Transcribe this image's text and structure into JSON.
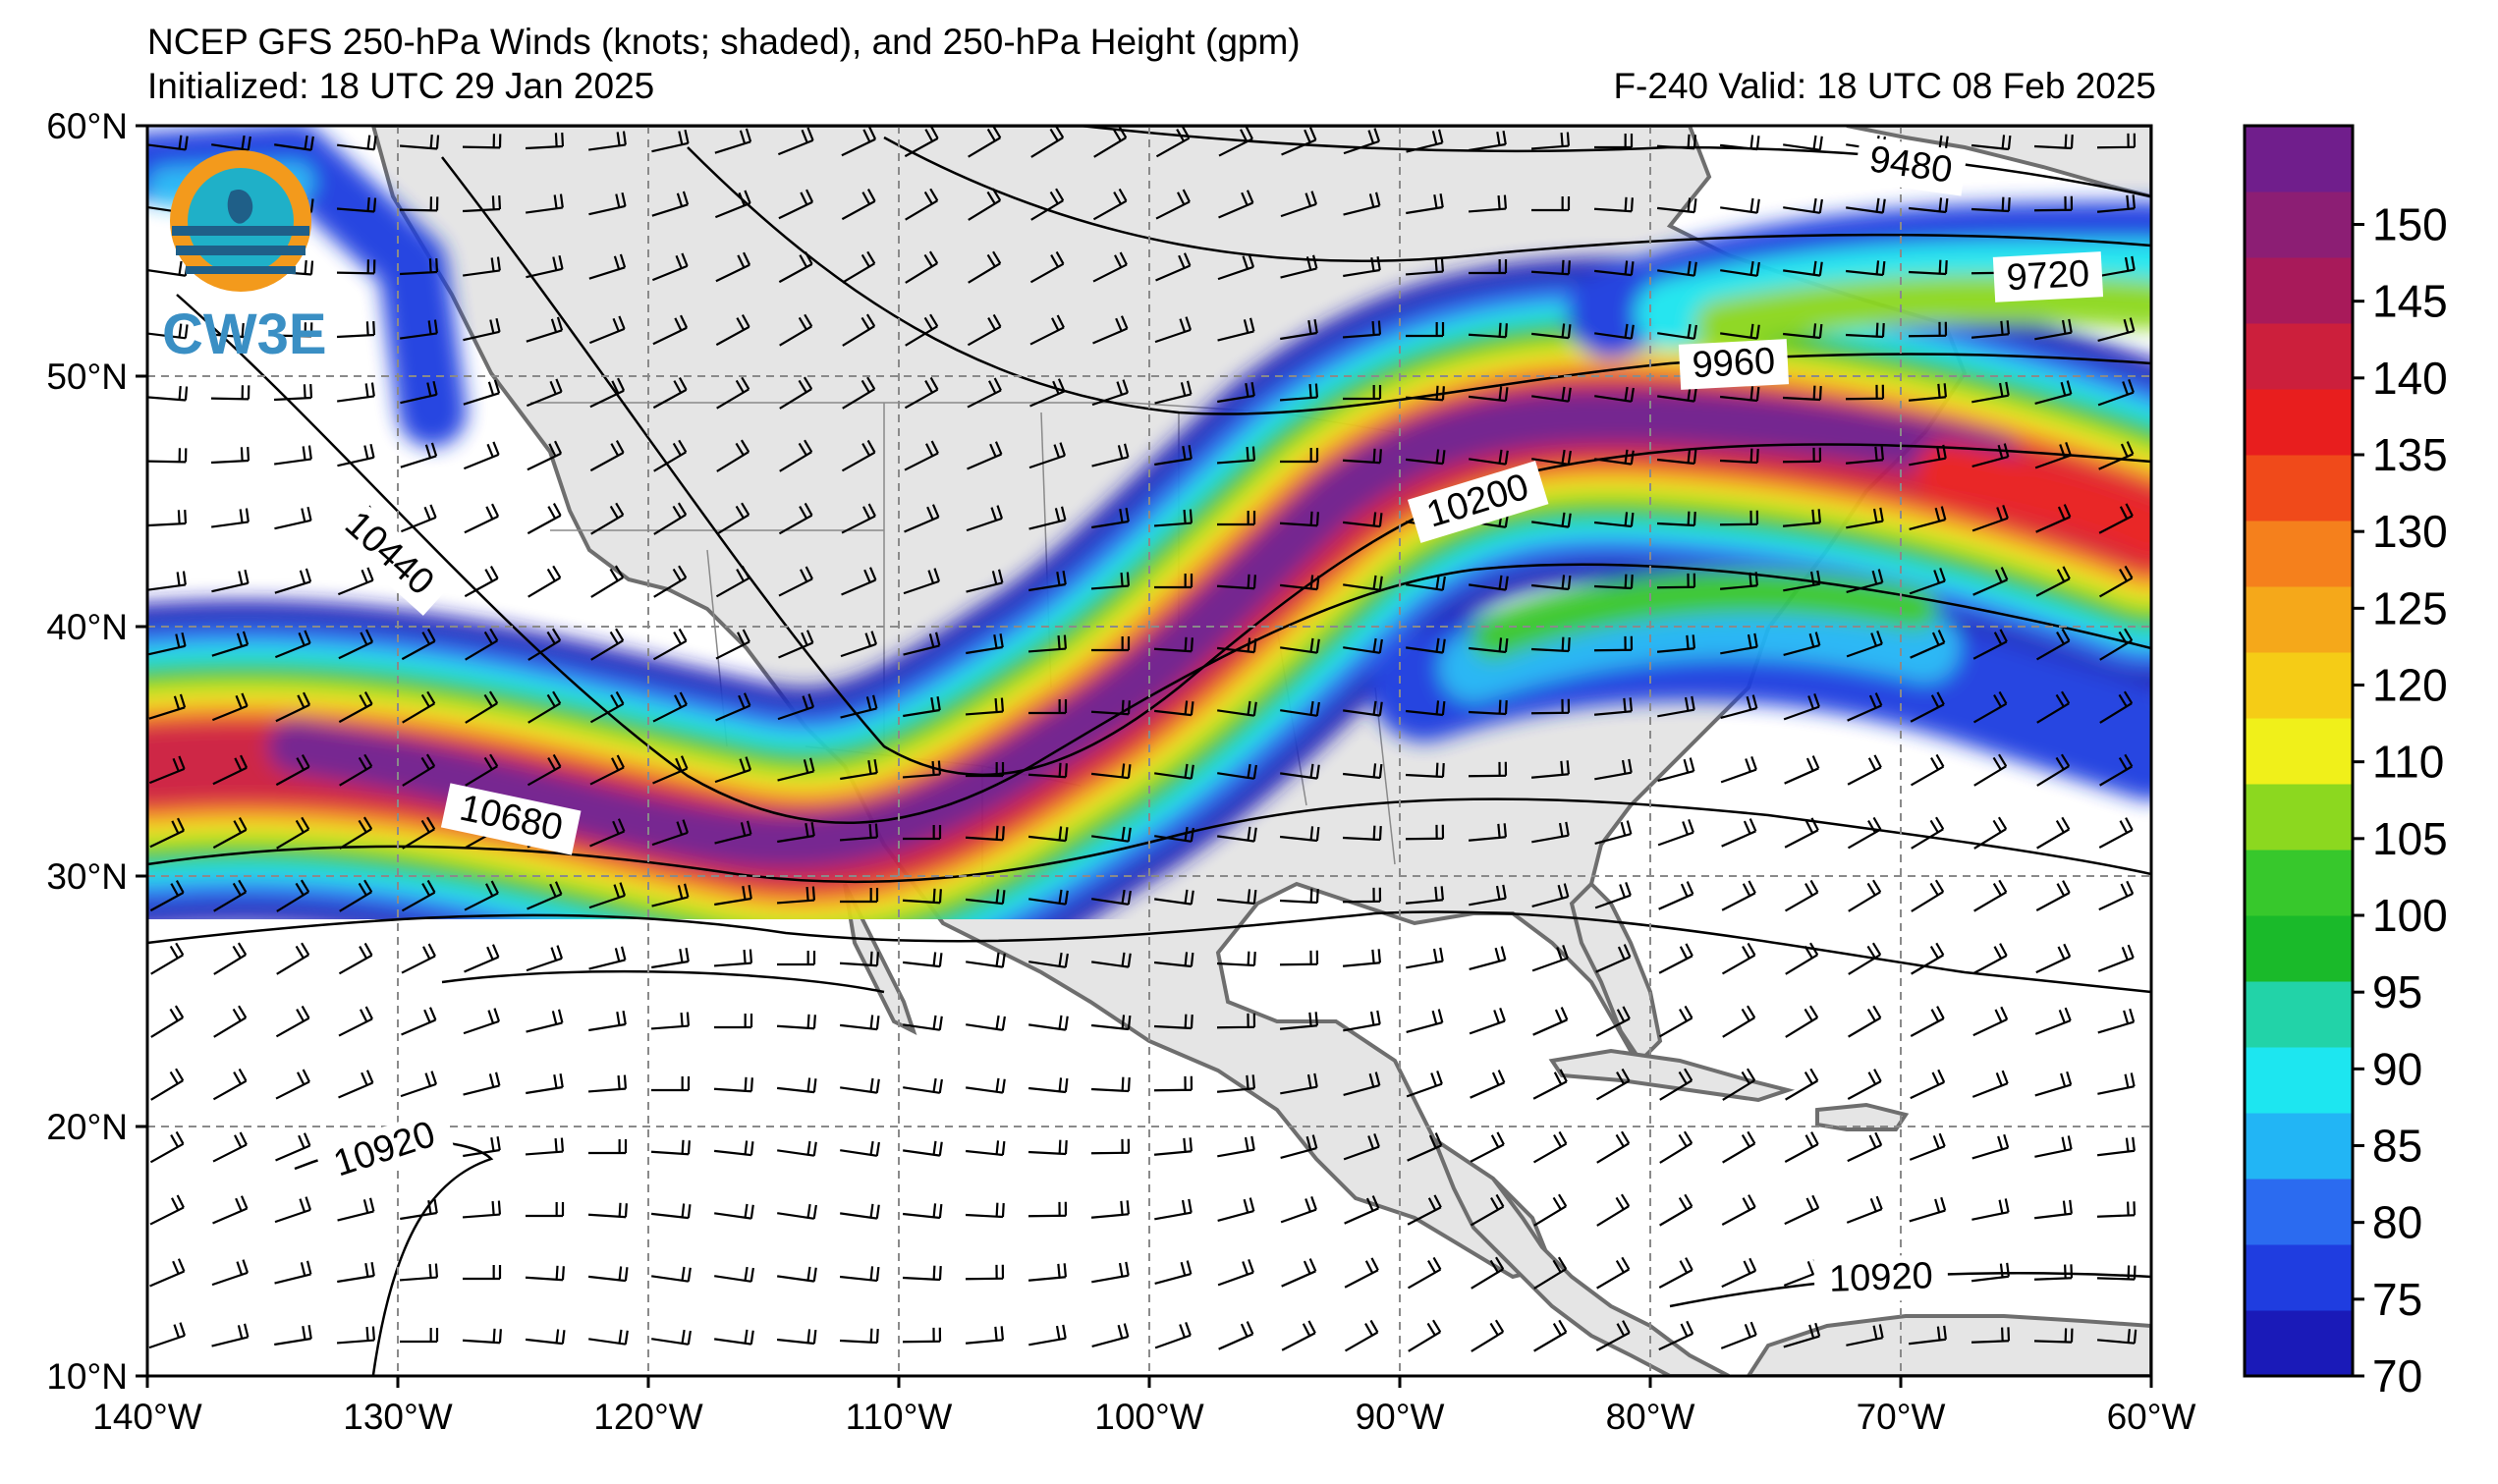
{
  "title": {
    "line1": "NCEP GFS 250-hPa Winds (knots; shaded), and 250-hPa Height (gpm)",
    "line2": "Initialized: 18 UTC 29 Jan 2025",
    "valid": "F-240  Valid: 18 UTC 08 Feb 2025"
  },
  "logo": {
    "text": "CW3E",
    "icon": "cw3e-logo-icon"
  },
  "axes": {
    "lon_labels": [
      "140°W",
      "130°W",
      "120°W",
      "110°W",
      "100°W",
      "90°W",
      "80°W",
      "70°W",
      "60°W"
    ],
    "lat_labels": [
      "60°N",
      "50°N",
      "40°N",
      "30°N",
      "20°N",
      "10°N"
    ],
    "lon_range": [
      -140,
      -60
    ],
    "lat_range": [
      10,
      60
    ],
    "grid": true
  },
  "height_contours": [
    {
      "label": "9480"
    },
    {
      "label": "9720"
    },
    {
      "label": "9960"
    },
    {
      "label": "10200"
    },
    {
      "label": "10440"
    },
    {
      "label": "10680"
    },
    {
      "label": "10920"
    },
    {
      "label": "10920"
    }
  ],
  "colorbar": {
    "ticks": [
      "70",
      "75",
      "80",
      "85",
      "90",
      "95",
      "100",
      "105",
      "110",
      "120",
      "125",
      "130",
      "135",
      "140",
      "145",
      "150"
    ],
    "colors": [
      "#1a1ab8",
      "#1f3de0",
      "#2b6bf0",
      "#22b5f5",
      "#1de6f0",
      "#22d3a8",
      "#1aba2a",
      "#37c82c",
      "#8cd81f",
      "#f0f01a",
      "#f5cc16",
      "#f5a81a",
      "#f5801c",
      "#f04a1a",
      "#e81e1e",
      "#cc1f3c",
      "#a81a5a",
      "#8c1e74",
      "#701e8c"
    ]
  },
  "colors": {
    "land": "#e5e5e5",
    "coast": "#6e6e6e",
    "grid": "#8a8a8a"
  }
}
